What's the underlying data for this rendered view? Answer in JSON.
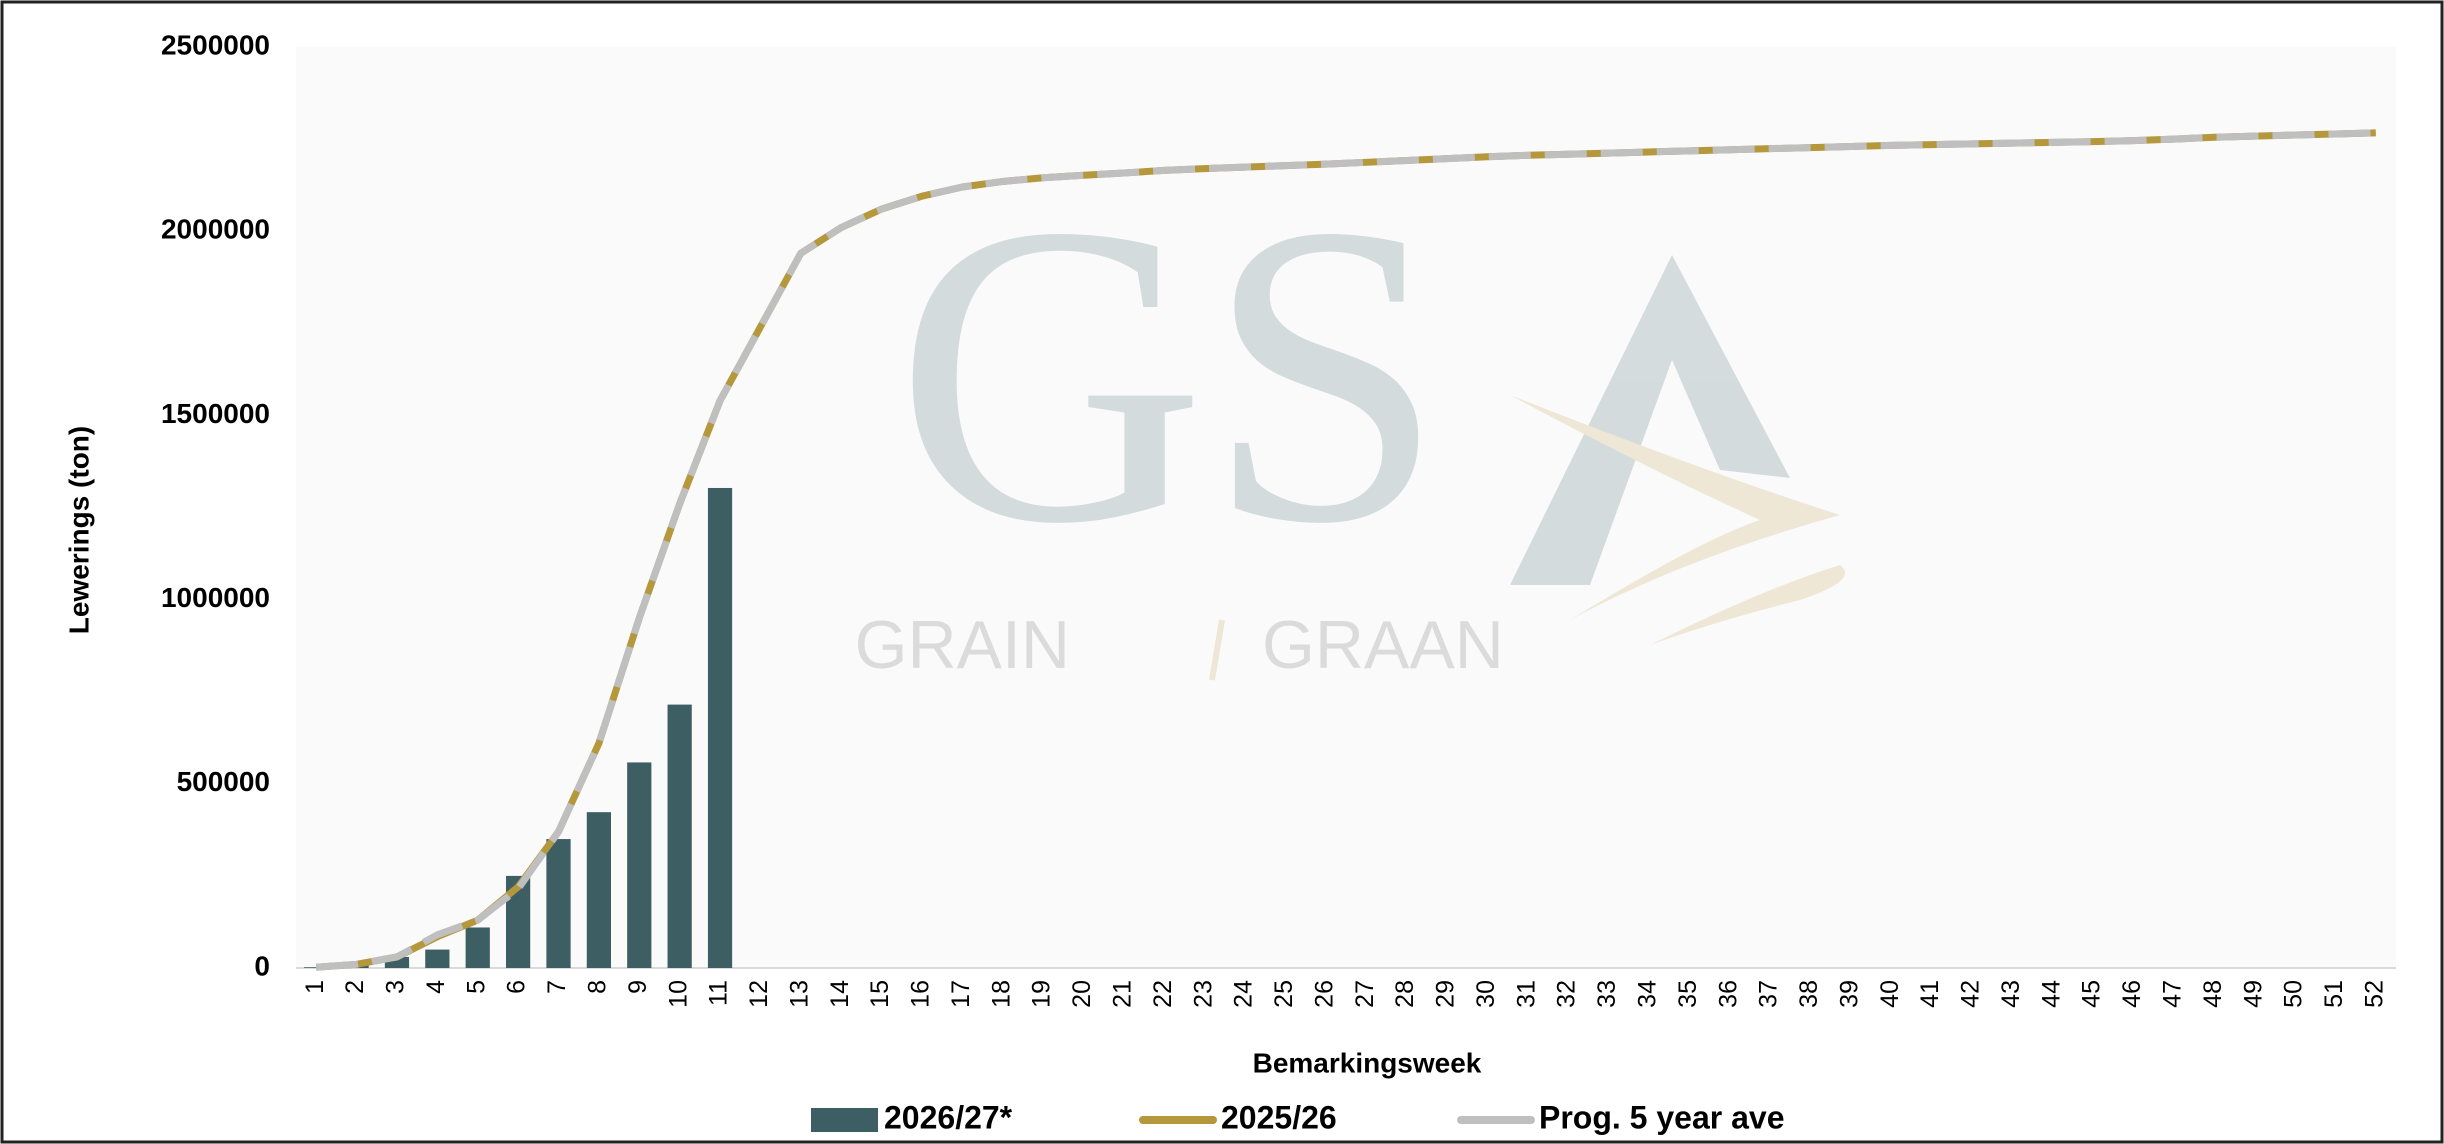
{
  "chart_data": {
    "type": "bar_line",
    "y_label": "Lewerings (ton)",
    "x_label": "Bemarkingsweek",
    "watermark": {
      "logo": "GS",
      "left": "GRAIN",
      "right": "GRAAN"
    },
    "categories": [
      "1",
      "2",
      "3",
      "4",
      "5",
      "6",
      "7",
      "8",
      "9",
      "10",
      "11",
      "12",
      "13",
      "14",
      "15",
      "16",
      "17",
      "18",
      "19",
      "20",
      "21",
      "22",
      "23",
      "24",
      "25",
      "26",
      "27",
      "28",
      "29",
      "30",
      "31",
      "32",
      "33",
      "34",
      "35",
      "36",
      "37",
      "38",
      "39",
      "40",
      "41",
      "42",
      "43",
      "44",
      "45",
      "46",
      "47",
      "48",
      "49",
      "50",
      "51",
      "52"
    ],
    "series": [
      {
        "name": "2026/27*",
        "kind": "bar",
        "color": "#3d5f63",
        "values": [
          2000,
          8000,
          30000,
          50000,
          110000,
          250000,
          350000,
          423000,
          558000,
          715000,
          1303000,
          null,
          null,
          null,
          null,
          null,
          null,
          null,
          null,
          null,
          null,
          null,
          null,
          null,
          null,
          null,
          null,
          null,
          null,
          null,
          null,
          null,
          null,
          null,
          null,
          null,
          null,
          null,
          null,
          null,
          null,
          null,
          null,
          null,
          null,
          null,
          null,
          null,
          null,
          null,
          null,
          null
        ]
      },
      {
        "name": "2025/26",
        "kind": "line",
        "color": "#b5973c",
        "values": [
          2000,
          10000,
          30000,
          85000,
          130000,
          220000,
          370000,
          610000,
          950000,
          1260000,
          1540000,
          1740000,
          1940000,
          2010000,
          2060000,
          2095000,
          2120000,
          2135000,
          2145000,
          2152000,
          2158000,
          2165000,
          2170000,
          2174000,
          2178000,
          2182000,
          2187000,
          2192000,
          2197000,
          2202000,
          2206000,
          2209000,
          2212000,
          2215000,
          2218000,
          2221000,
          2224000,
          2227000,
          2230000,
          2233000,
          2235000,
          2237000,
          2239000,
          2241000,
          2243000,
          2246000,
          2250000,
          2255000,
          2258000,
          2261000,
          2264000,
          2267000
        ]
      },
      {
        "name": "Prog. 5 year ave",
        "kind": "line",
        "color": "#bfbfbf",
        "values": [
          2000,
          10000,
          30000,
          90000,
          130000,
          215000,
          370000,
          610000,
          950000,
          1260000,
          1540000,
          1740000,
          1940000,
          2010000,
          2060000,
          2095000,
          2120000,
          2135000,
          2145000,
          2152000,
          2158000,
          2165000,
          2170000,
          2174000,
          2178000,
          2182000,
          2187000,
          2192000,
          2197000,
          2202000,
          2206000,
          2209000,
          2212000,
          2215000,
          2218000,
          2221000,
          2224000,
          2227000,
          2230000,
          2233000,
          2235000,
          2237000,
          2239000,
          2241000,
          2243000,
          2246000,
          2250000,
          2255000,
          2258000,
          2261000,
          2264000,
          2267000
        ]
      }
    ],
    "ylim": [
      0,
      2500000
    ],
    "yticks": [
      0,
      500000,
      1000000,
      1500000,
      2000000,
      2500000
    ],
    "grid": false,
    "legend": "bottom"
  }
}
